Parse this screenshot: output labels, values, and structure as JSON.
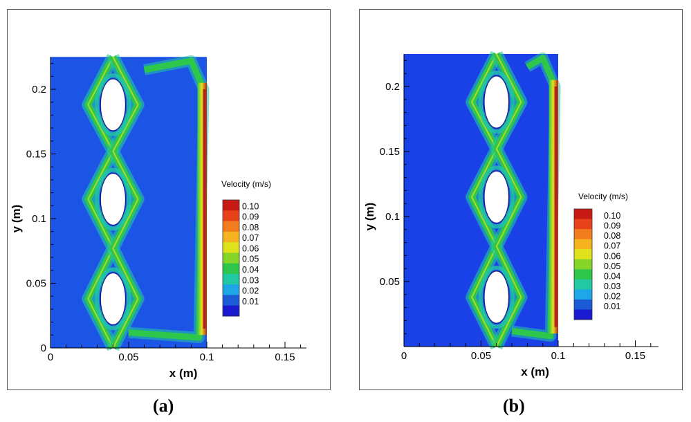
{
  "chart_data": [
    {
      "type": "heatmap",
      "panel": "(a)",
      "xlabel": "x (m)",
      "ylabel": "y (m)",
      "xlim": [
        0,
        0.17
      ],
      "ylim": [
        0,
        0.225
      ],
      "domain_x": [
        0,
        0.1
      ],
      "xticks": [
        "0",
        "0.05",
        "0.1",
        "0.15"
      ],
      "yticks": [
        "0",
        "0.05",
        "0.1",
        "0.15",
        "0.2"
      ],
      "colorbar": {
        "title": "Velocity (m/s)",
        "levels": [
          "0.10",
          "0.09",
          "0.08",
          "0.07",
          "0.06",
          "0.05",
          "0.04",
          "0.03",
          "0.02",
          "0.01"
        ],
        "colors": [
          "#c81a14",
          "#e8421a",
          "#f27d1e",
          "#f5b41f",
          "#e1e21e",
          "#86d62a",
          "#2fc64c",
          "#22c8a2",
          "#1ea6e6",
          "#1b5bd6",
          "#1a1ad0"
        ]
      },
      "obstacles": [
        {
          "cx": 0.04,
          "cy": 0.188,
          "rx": 0.008,
          "ry": 0.02
        },
        {
          "cx": 0.04,
          "cy": 0.115,
          "rx": 0.008,
          "ry": 0.02
        },
        {
          "cx": 0.04,
          "cy": 0.038,
          "rx": 0.008,
          "ry": 0.02
        }
      ],
      "background_color": "#1c55e6",
      "jet_color": "#b5241c"
    },
    {
      "type": "heatmap",
      "panel": "(b)",
      "xlabel": "x (m)",
      "ylabel": "y (m)",
      "xlim": [
        0,
        0.17
      ],
      "ylim": [
        0,
        0.225
      ],
      "domain_x": [
        0,
        0.1
      ],
      "xticks": [
        "0",
        "0.05",
        "0.1",
        "0.15"
      ],
      "yticks": [
        "0.05",
        "0.1",
        "0.15",
        "0.2"
      ],
      "colorbar": {
        "title": "Velocity (m/s)",
        "levels": [
          "0.10",
          "0.09",
          "0.08",
          "0.07",
          "0.06",
          "0.05",
          "0.04",
          "0.03",
          "0.02",
          "0.01"
        ],
        "colors": [
          "#c81a14",
          "#e8421a",
          "#f27d1e",
          "#f5b41f",
          "#e1e21e",
          "#86d62a",
          "#2fc64c",
          "#22c8a2",
          "#1ea6e6",
          "#1b5bd6",
          "#1a1ad0"
        ]
      },
      "obstacles": [
        {
          "cx": 0.06,
          "cy": 0.188,
          "rx": 0.008,
          "ry": 0.02
        },
        {
          "cx": 0.06,
          "cy": 0.115,
          "rx": 0.008,
          "ry": 0.02
        },
        {
          "cx": 0.06,
          "cy": 0.038,
          "rx": 0.008,
          "ry": 0.02
        }
      ],
      "background_color": "#1a40e8",
      "jet_color": "#b5241c"
    }
  ],
  "captions": {
    "a": "(a)",
    "b": "(b)"
  }
}
